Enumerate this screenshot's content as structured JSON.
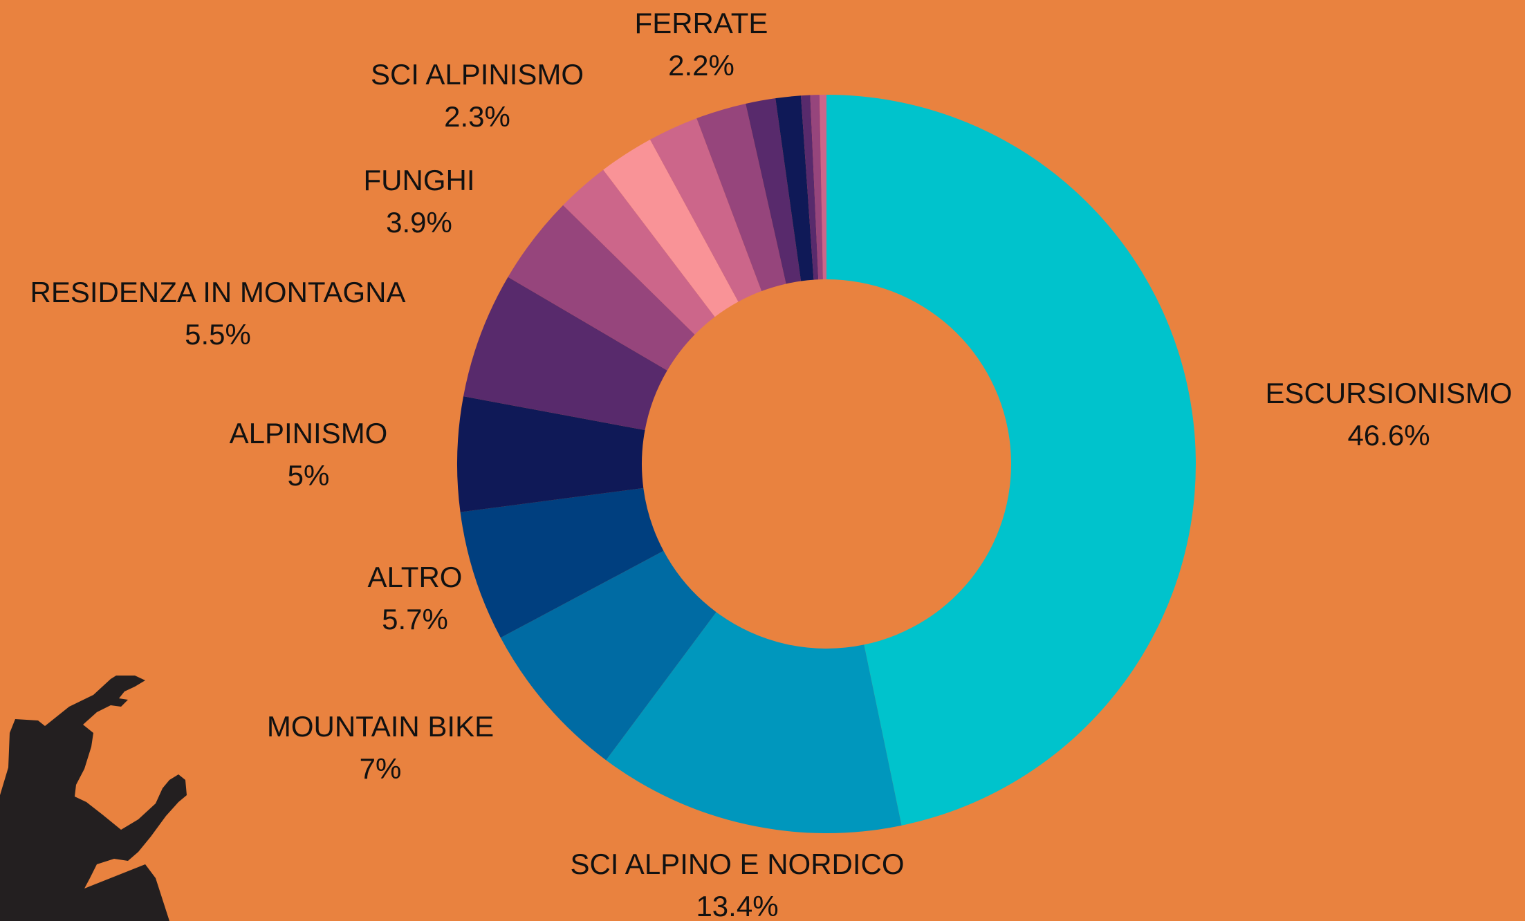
{
  "chart_data": {
    "type": "donut",
    "categories": [
      "ESCURSIONISMO",
      "SCI ALPINO E NORDICO",
      "MOUNTAIN BIKE",
      "ALTRO",
      "ALPINISMO",
      "RESIDENZA IN MONTAGNA",
      "FUNGHI",
      "SCI ALPINISMO",
      null,
      null,
      "FERRATE",
      null,
      null,
      null,
      null,
      null
    ],
    "values": [
      46.6,
      13.4,
      7,
      5.7,
      5,
      5.5,
      3.9,
      2.3,
      2.4,
      2.2,
      2.2,
      1.3,
      1.1,
      0.4,
      0.4,
      0.3
    ],
    "value_labels": [
      "46.6%",
      "13.4%",
      "7%",
      "5.7%",
      "5%",
      "5.5%",
      "3.9%",
      "2.3%",
      null,
      null,
      "2.2%",
      null,
      null,
      null,
      null,
      null
    ],
    "colors": [
      "#00c3cc",
      "#0097bd",
      "#006ba3",
      "#003f7f",
      "#0f1957",
      "#582a6c",
      "#96457c",
      "#cc668a",
      "#f99397",
      "#cc668a",
      "#96457c",
      "#582a6c",
      "#0f1957",
      "#582a6c",
      "#96457c",
      "#cc668a"
    ]
  }
}
